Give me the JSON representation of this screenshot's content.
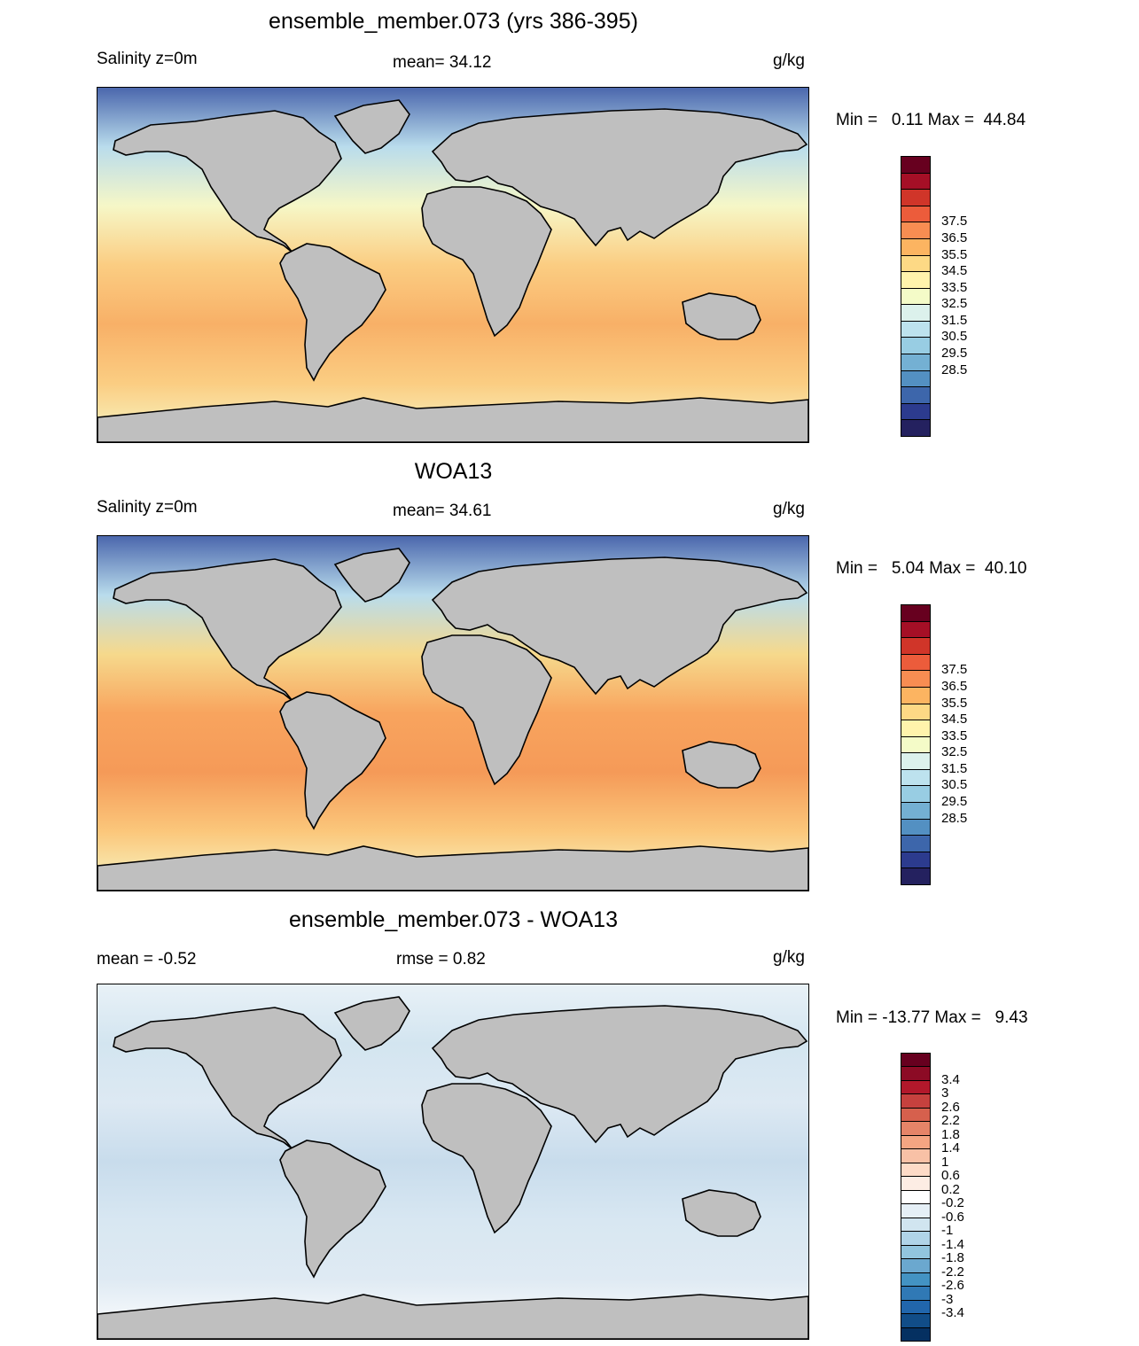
{
  "colors": {
    "land": "#bfbfbf",
    "coast": "#000000"
  },
  "panels": [
    {
      "title": "ensemble_member.073 (yrs 386-395)",
      "left_label": "Salinity z=0m",
      "center_label": "mean=  34.12",
      "units": "g/kg",
      "minmax": "Min =   0.11 Max =  44.84",
      "ocean_gradient": [
        "#4b67ad",
        "#b9dcec",
        "#f6f7c7",
        "#fbcd82",
        "#f8b067",
        "#fbcd82",
        "#f6f7c7"
      ],
      "colorbar": {
        "labels": [
          "37.5",
          "36.5",
          "35.5",
          "34.5",
          "33.5",
          "32.5",
          "31.5",
          "30.5",
          "29.5",
          "28.5"
        ],
        "colors": [
          "#67001f",
          "#a50f26",
          "#d03529",
          "#ec5c3b",
          "#f88d52",
          "#fcb461",
          "#fdd985",
          "#fff3ac",
          "#f4fbc8",
          "#dcf1ec",
          "#bde2ee",
          "#98cde3",
          "#74b0d3",
          "#5390c2",
          "#3d66ab",
          "#2c3b8e",
          "#24215f"
        ]
      }
    },
    {
      "title": "WOA13",
      "left_label": "Salinity z=0m",
      "center_label": "mean=  34.61",
      "units": "g/kg",
      "minmax": "Min =   5.04 Max =  40.10",
      "ocean_gradient": [
        "#4b67ad",
        "#b9dcec",
        "#f6d98c",
        "#f8a45e",
        "#f59a58",
        "#fbc77b",
        "#f6f7c7"
      ],
      "colorbar": {
        "labels": [
          "37.5",
          "36.5",
          "35.5",
          "34.5",
          "33.5",
          "32.5",
          "31.5",
          "30.5",
          "29.5",
          "28.5"
        ],
        "colors": [
          "#67001f",
          "#a50f26",
          "#d03529",
          "#ec5c3b",
          "#f88d52",
          "#fcb461",
          "#fdd985",
          "#fff3ac",
          "#f4fbc8",
          "#dcf1ec",
          "#bde2ee",
          "#98cde3",
          "#74b0d3",
          "#5390c2",
          "#3d66ab",
          "#2c3b8e",
          "#24215f"
        ]
      }
    },
    {
      "title": "ensemble_member.073 - WOA13",
      "left_label": "mean =  -0.52",
      "center_label": "rmse =   0.82",
      "units": "g/kg",
      "minmax": "Min = -13.77 Max =   9.43",
      "ocean_gradient": [
        "#e8f1f7",
        "#d3e5f0",
        "#dde9f3",
        "#c8dcec",
        "#d8e7f2",
        "#dfeaf3",
        "#ffffff"
      ],
      "colorbar": {
        "labels": [
          "3.4",
          "3",
          "2.6",
          "2.2",
          "1.8",
          "1.4",
          "1",
          "0.6",
          "0.2",
          "-0.2",
          "-0.6",
          "-1",
          "-1.4",
          "-1.8",
          "-2.2",
          "-2.6",
          "-3",
          "-3.4"
        ],
        "colors": [
          "#67001f",
          "#8c0b25",
          "#b2182b",
          "#c6413e",
          "#d6604d",
          "#e58468",
          "#f4a582",
          "#f8c1a6",
          "#fddbc7",
          "#fdede4",
          "#ffffff",
          "#e5eff6",
          "#d1e5f0",
          "#b0d4e8",
          "#92c5de",
          "#6ba8cf",
          "#4393c3",
          "#3079b5",
          "#2166ac",
          "#114d88",
          "#053061"
        ]
      }
    }
  ]
}
